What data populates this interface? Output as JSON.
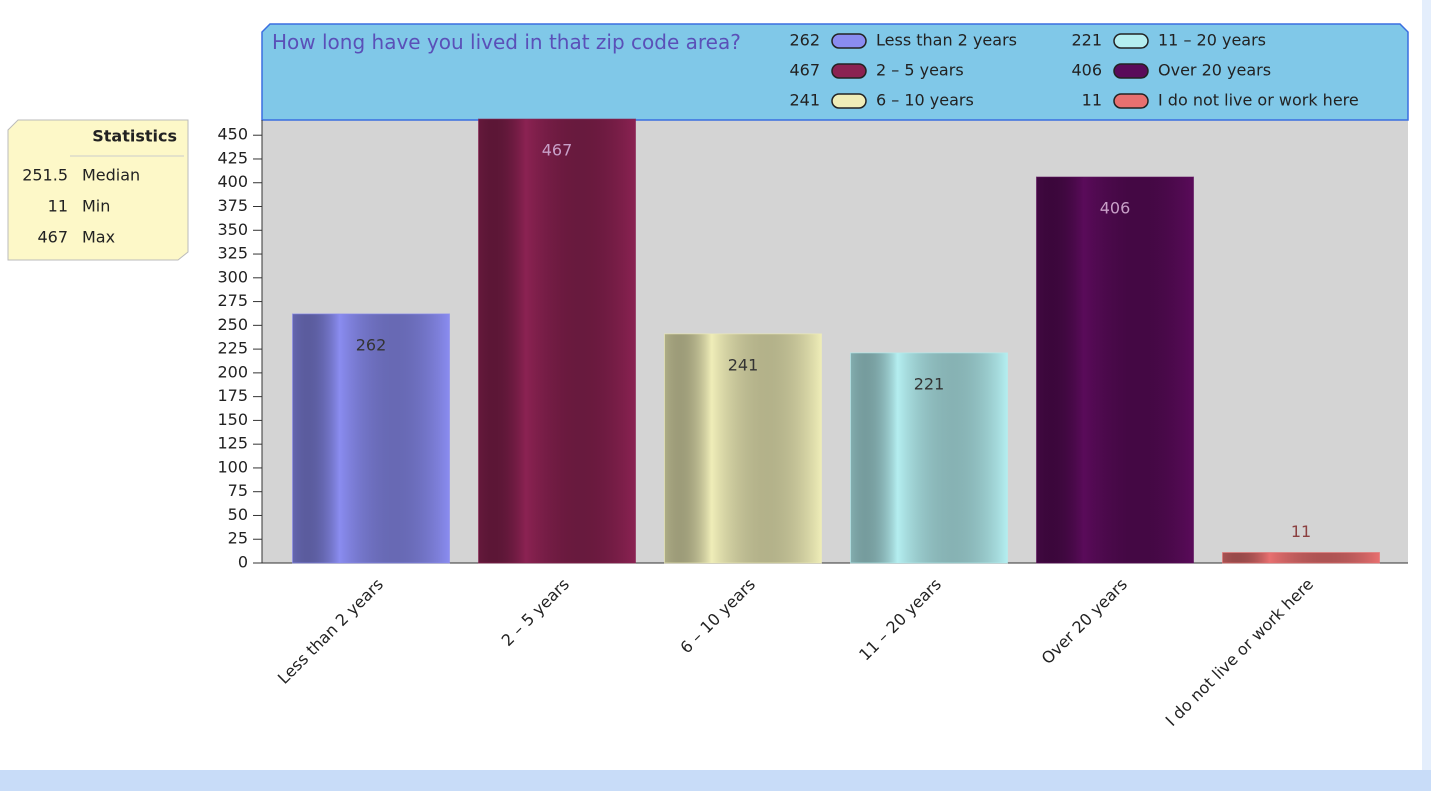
{
  "chart_data": {
    "type": "bar",
    "title": "How long have you lived in that zip code area?",
    "categories": [
      "Less than 2 years",
      "2 – 5 years",
      "6 – 10 years",
      "11 – 20 years",
      "Over 20 years",
      "I do not live or work here"
    ],
    "values": [
      262,
      467,
      241,
      221,
      406,
      11
    ],
    "colors": [
      "#8a8cf0",
      "#8b2252",
      "#efedb8",
      "#b4eef0",
      "#5a0b5a",
      "#e87070"
    ],
    "ylim": [
      0,
      466
    ],
    "yticks": [
      0,
      25,
      50,
      75,
      100,
      125,
      150,
      175,
      200,
      225,
      250,
      275,
      300,
      325,
      350,
      375,
      400,
      425,
      450
    ],
    "grid": false
  },
  "statistics": {
    "title": "Statistics",
    "rows": [
      {
        "value": 251.5,
        "label": "Median"
      },
      {
        "value": 11,
        "label": "Min"
      },
      {
        "value": 467,
        "label": "Max"
      }
    ]
  }
}
